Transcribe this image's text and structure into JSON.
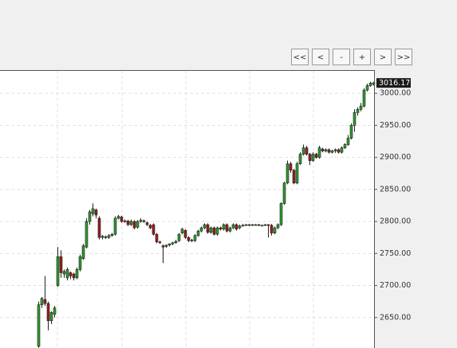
{
  "controls": [
    "<<",
    "<",
    "-",
    "+",
    ">",
    ">>"
  ],
  "chart_data": {
    "type": "candlestick",
    "ylim": [
      2602.5,
      3036.25
    ],
    "yticks": [
      {
        "value": 2650,
        "label": "2650.00"
      },
      {
        "value": 2700,
        "label": "2700.00"
      },
      {
        "value": 2750,
        "label": "2750.00"
      },
      {
        "value": 2800,
        "label": "2800.00"
      },
      {
        "value": 2850,
        "label": "2850.00"
      },
      {
        "value": 2900,
        "label": "2900.00"
      },
      {
        "value": 2950,
        "label": "2950.00"
      },
      {
        "value": 3000,
        "label": "3000.00"
      }
    ],
    "grid": true,
    "up_color": "#2e9a2e",
    "down_color": "#9b1c1c",
    "ohlc": [
      [
        2605,
        2675,
        2603,
        2670
      ],
      [
        2670,
        2682,
        2665,
        2680
      ],
      [
        2678,
        2715,
        2668,
        2672
      ],
      [
        2672,
        2675,
        2630,
        2645
      ],
      [
        2645,
        2660,
        2640,
        2658
      ],
      [
        2655,
        2668,
        2650,
        2665
      ],
      [
        2700,
        2760,
        2698,
        2745
      ],
      [
        2745,
        2755,
        2712,
        2720
      ],
      [
        2718,
        2725,
        2712,
        2722
      ],
      [
        2712,
        2728,
        2708,
        2725
      ],
      [
        2720,
        2722,
        2710,
        2715
      ],
      [
        2718,
        2720,
        2708,
        2712
      ],
      [
        2712,
        2728,
        2710,
        2725
      ],
      [
        2725,
        2748,
        2722,
        2745
      ],
      [
        2742,
        2765,
        2740,
        2762
      ],
      [
        2760,
        2805,
        2758,
        2800
      ],
      [
        2800,
        2818,
        2795,
        2815
      ],
      [
        2812,
        2828,
        2808,
        2820
      ],
      [
        2818,
        2820,
        2805,
        2810
      ],
      [
        2805,
        2808,
        2772,
        2775
      ],
      [
        2775,
        2779,
        2772,
        2777
      ],
      [
        2776,
        2778,
        2773,
        2775
      ],
      [
        2775,
        2780,
        2773,
        2778
      ],
      [
        2778,
        2782,
        2776,
        2780
      ],
      [
        2780,
        2808,
        2778,
        2805
      ],
      [
        2805,
        2810,
        2803,
        2808
      ],
      [
        2807,
        2809,
        2798,
        2800
      ],
      [
        2800,
        2803,
        2798,
        2801
      ],
      [
        2801,
        2802,
        2793,
        2795
      ],
      [
        2795,
        2803,
        2793,
        2800
      ],
      [
        2800,
        2802,
        2788,
        2790
      ],
      [
        2791,
        2802,
        2789,
        2800
      ],
      [
        2800,
        2805,
        2798,
        2802
      ],
      [
        2801,
        2803,
        2798,
        2800
      ],
      [
        2798,
        2800,
        2793,
        2795
      ],
      [
        2794,
        2796,
        2788,
        2790
      ],
      [
        2795,
        2797,
        2778,
        2780
      ],
      [
        2780,
        2782,
        2766,
        2768
      ],
      [
        2768,
        2770,
        2765,
        2767
      ],
      [
        2762,
        2764,
        2735,
        2760
      ],
      [
        2761,
        2764,
        2759,
        2763
      ],
      [
        2763,
        2766,
        2761,
        2765
      ],
      [
        2765,
        2768,
        2763,
        2767
      ],
      [
        2767,
        2771,
        2765,
        2769
      ],
      [
        2770,
        2782,
        2768,
        2780
      ],
      [
        2782,
        2790,
        2780,
        2788
      ],
      [
        2786,
        2788,
        2773,
        2775
      ],
      [
        2775,
        2777,
        2768,
        2770
      ],
      [
        2770,
        2773,
        2768,
        2771
      ],
      [
        2770,
        2780,
        2768,
        2778
      ],
      [
        2778,
        2787,
        2776,
        2785
      ],
      [
        2785,
        2792,
        2783,
        2790
      ],
      [
        2790,
        2797,
        2788,
        2795
      ],
      [
        2795,
        2797,
        2781,
        2783
      ],
      [
        2783,
        2792,
        2781,
        2790
      ],
      [
        2790,
        2792,
        2778,
        2780
      ],
      [
        2780,
        2792,
        2778,
        2790
      ],
      [
        2790,
        2792,
        2786,
        2788
      ],
      [
        2788,
        2797,
        2786,
        2795
      ],
      [
        2795,
        2797,
        2783,
        2785
      ],
      [
        2785,
        2792,
        2783,
        2790
      ],
      [
        2790,
        2797,
        2788,
        2795
      ],
      [
        2795,
        2797,
        2786,
        2788
      ],
      [
        2790,
        2795,
        2788,
        2793
      ],
      [
        2793,
        2796,
        2792,
        2794
      ],
      [
        2794,
        2796,
        2793,
        2795
      ],
      [
        2795,
        2796,
        2793,
        2794
      ],
      [
        2794,
        2796,
        2793,
        2795
      ],
      [
        2795,
        2796,
        2794,
        2795
      ],
      [
        2795,
        2796,
        2793,
        2794
      ],
      [
        2794,
        2795,
        2793,
        2794
      ],
      [
        2794,
        2796,
        2793,
        2795
      ],
      [
        2795,
        2796,
        2775,
        2794
      ],
      [
        2794,
        2796,
        2778,
        2782
      ],
      [
        2782,
        2792,
        2780,
        2790
      ],
      [
        2790,
        2797,
        2788,
        2795
      ],
      [
        2795,
        2830,
        2793,
        2828
      ],
      [
        2828,
        2862,
        2826,
        2860
      ],
      [
        2860,
        2895,
        2858,
        2890
      ],
      [
        2890,
        2893,
        2876,
        2880
      ],
      [
        2880,
        2882,
        2858,
        2860
      ],
      [
        2860,
        2893,
        2858,
        2890
      ],
      [
        2890,
        2908,
        2888,
        2905
      ],
      [
        2905,
        2920,
        2903,
        2915
      ],
      [
        2915,
        2918,
        2903,
        2905
      ],
      [
        2905,
        2907,
        2888,
        2895
      ],
      [
        2895,
        2908,
        2893,
        2905
      ],
      [
        2905,
        2907,
        2898,
        2900
      ],
      [
        2900,
        2918,
        2898,
        2915
      ],
      [
        2913,
        2915,
        2908,
        2910
      ],
      [
        2910,
        2914,
        2908,
        2912
      ],
      [
        2912,
        2914,
        2906,
        2908
      ],
      [
        2908,
        2912,
        2906,
        2910
      ],
      [
        2910,
        2914,
        2907,
        2912
      ],
      [
        2912,
        2914,
        2906,
        2908
      ],
      [
        2908,
        2917,
        2906,
        2915
      ],
      [
        2915,
        2922,
        2913,
        2920
      ],
      [
        2920,
        2935,
        2918,
        2930
      ],
      [
        2930,
        2953,
        2928,
        2950
      ],
      [
        2950,
        2975,
        2940,
        2970
      ],
      [
        2970,
        2978,
        2965,
        2975
      ],
      [
        2975,
        2985,
        2972,
        2980
      ],
      [
        2980,
        3008,
        2978,
        3005
      ],
      [
        3005,
        3015,
        3003,
        3012
      ],
      [
        3012,
        3018,
        3010,
        3016
      ],
      [
        3014,
        3018,
        3012,
        3016.17
      ]
    ]
  }
}
